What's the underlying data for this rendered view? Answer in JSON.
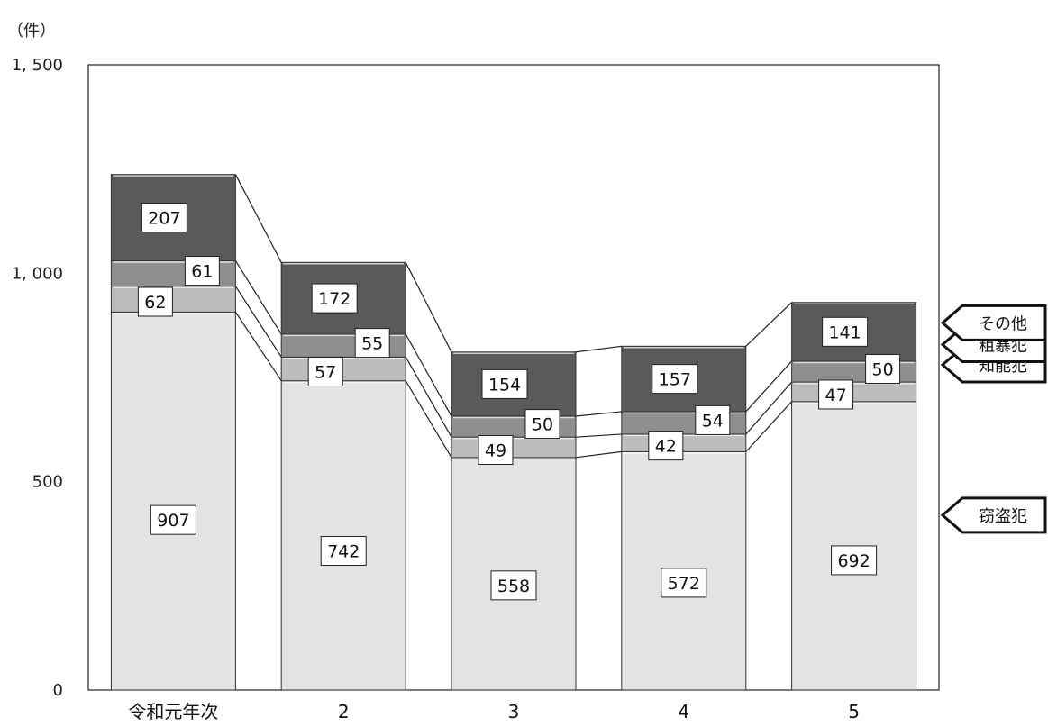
{
  "chart_data": {
    "type": "bar",
    "stacked": true,
    "unit": "（件）",
    "categories": [
      "令和元年次",
      "2",
      "3",
      "4",
      "5"
    ],
    "ylim": [
      0,
      1500
    ],
    "yticks": [
      {
        "value": 0,
        "label": "0"
      },
      {
        "value": 500,
        "label": "500"
      },
      {
        "value": 1000,
        "label": "1, 000"
      },
      {
        "value": 1500,
        "label": "1, 500"
      }
    ],
    "series": [
      {
        "name": "窃盗犯",
        "values": [
          907,
          742,
          558,
          572,
          692
        ],
        "color": "#e3e3e3"
      },
      {
        "name": "知能犯",
        "values": [
          62,
          57,
          49,
          42,
          47
        ],
        "color": "#bdbdbd"
      },
      {
        "name": "粗暴犯",
        "values": [
          61,
          55,
          50,
          54,
          50
        ],
        "color": "#8f8f8f"
      },
      {
        "name": "その他",
        "values": [
          207,
          172,
          154,
          157,
          141
        ],
        "color": "#5a5a5a"
      }
    ],
    "grid": false,
    "legend": "right"
  }
}
